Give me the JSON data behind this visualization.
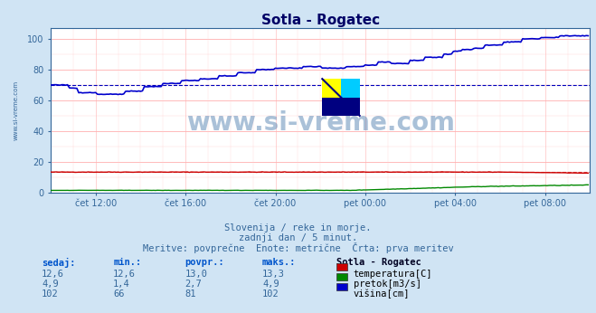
{
  "title": "Sotla - Rogatec",
  "bg_color": "#d0e4f4",
  "plot_bg_color": "#ffffff",
  "grid_color_h": "#ffb0b0",
  "grid_color_v": "#ffcccc",
  "watermark_text": "www.si-vreme.com",
  "subtitle_lines": [
    "Slovenija / reke in morje.",
    "zadnji dan / 5 minut.",
    "Meritve: povprečne  Enote: metrične  Črta: prva meritev"
  ],
  "xlabel_ticks": [
    "čet 12:00",
    "čet 16:00",
    "čet 20:00",
    "pet 00:00",
    "pet 04:00",
    "pet 08:00"
  ],
  "xlim": [
    0,
    288
  ],
  "ylim": [
    0,
    107
  ],
  "yticks": [
    0,
    20,
    40,
    60,
    80,
    100
  ],
  "temp_color": "#cc0000",
  "flow_color": "#008800",
  "height_color": "#0000cc",
  "avg_color": "#0000bb",
  "avg_temp_color": "#cc0000",
  "table_headers": [
    "sedaj:",
    "min.:",
    "povpr.:",
    "maks.:",
    "Sotla - Rogatec"
  ],
  "table_data": [
    [
      "12,6",
      "12,6",
      "13,0",
      "13,3",
      "temperatura[C]"
    ],
    [
      "4,9",
      "1,4",
      "2,7",
      "4,9",
      "pretok[m3/s]"
    ],
    [
      "102",
      "66",
      "81",
      "102",
      "višina[cm]"
    ]
  ],
  "table_colors": [
    "#cc0000",
    "#008800",
    "#0000cc"
  ],
  "n_points": 288,
  "avg_height": 70,
  "avg_temp": 13.3,
  "tick_x": [
    24,
    72,
    120,
    168,
    216,
    264
  ]
}
